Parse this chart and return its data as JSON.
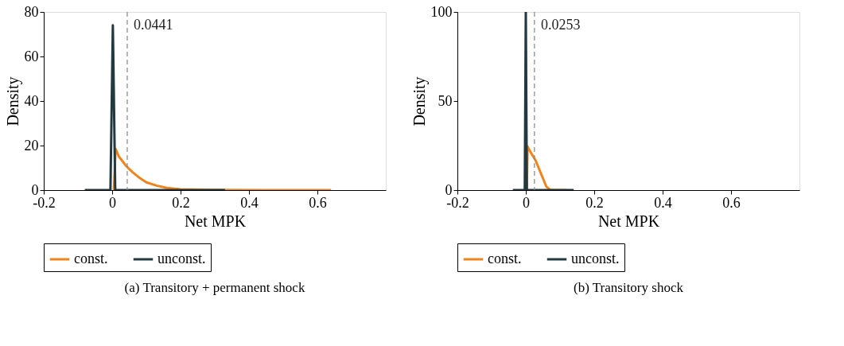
{
  "chart_data": [
    {
      "type": "line",
      "title": "(a) Transitory + permanent shock",
      "xlabel": "Net MPK",
      "ylabel": "Density",
      "xlim": [
        -0.2,
        0.8
      ],
      "ylim": [
        0,
        80
      ],
      "xticks": [
        -0.2,
        0,
        0.2,
        0.4,
        0.6
      ],
      "yticks": [
        0,
        20,
        40,
        60,
        80
      ],
      "grid": false,
      "legend": "bottom",
      "line_style": "solid",
      "marker": "none",
      "series": [
        {
          "name": "const.",
          "color": "#f0841c",
          "x": [
            0.005,
            0.01,
            0.02,
            0.04,
            0.06,
            0.08,
            0.1,
            0.13,
            0.16,
            0.2,
            0.3,
            0.45,
            0.64
          ],
          "values": [
            0,
            18.5,
            15,
            11,
            8,
            5.5,
            3.5,
            2,
            1,
            0.4,
            0.1,
            0,
            0
          ]
        },
        {
          "name": "unconst.",
          "color": "#223a3f",
          "x": [
            -0.08,
            -0.005,
            0.002,
            0.009,
            0.33
          ],
          "values": [
            0,
            0,
            74,
            0,
            0
          ]
        }
      ],
      "ref_lines": [
        {
          "axis": "x",
          "value": 0.0441,
          "label": "0.0441",
          "color": "#888888",
          "line_style": "dashed"
        }
      ]
    },
    {
      "type": "line",
      "title": "(b) Transitory shock",
      "xlabel": "Net MPK",
      "ylabel": "Density",
      "xlim": [
        -0.2,
        0.8
      ],
      "ylim": [
        0,
        100
      ],
      "xticks": [
        -0.2,
        0,
        0.2,
        0.4,
        0.6
      ],
      "yticks": [
        0,
        50,
        100
      ],
      "grid": false,
      "legend": "bottom",
      "line_style": "solid",
      "marker": "none",
      "series": [
        {
          "name": "const.",
          "color": "#f0841c",
          "x": [
            0.003,
            0.005,
            0.015,
            0.029,
            0.045,
            0.06,
            0.072,
            0.12
          ],
          "values": [
            0,
            24.5,
            21,
            16.5,
            9,
            2,
            0,
            0
          ]
        },
        {
          "name": "unconst.",
          "color": "#223a3f",
          "x": [
            -0.038,
            -0.003,
            0,
            0.003,
            0.14
          ],
          "values": [
            0,
            0,
            100,
            0,
            0
          ]
        }
      ],
      "ref_lines": [
        {
          "axis": "x",
          "value": 0.0253,
          "label": "0.0253",
          "color": "#888888",
          "line_style": "dashed"
        }
      ]
    }
  ]
}
